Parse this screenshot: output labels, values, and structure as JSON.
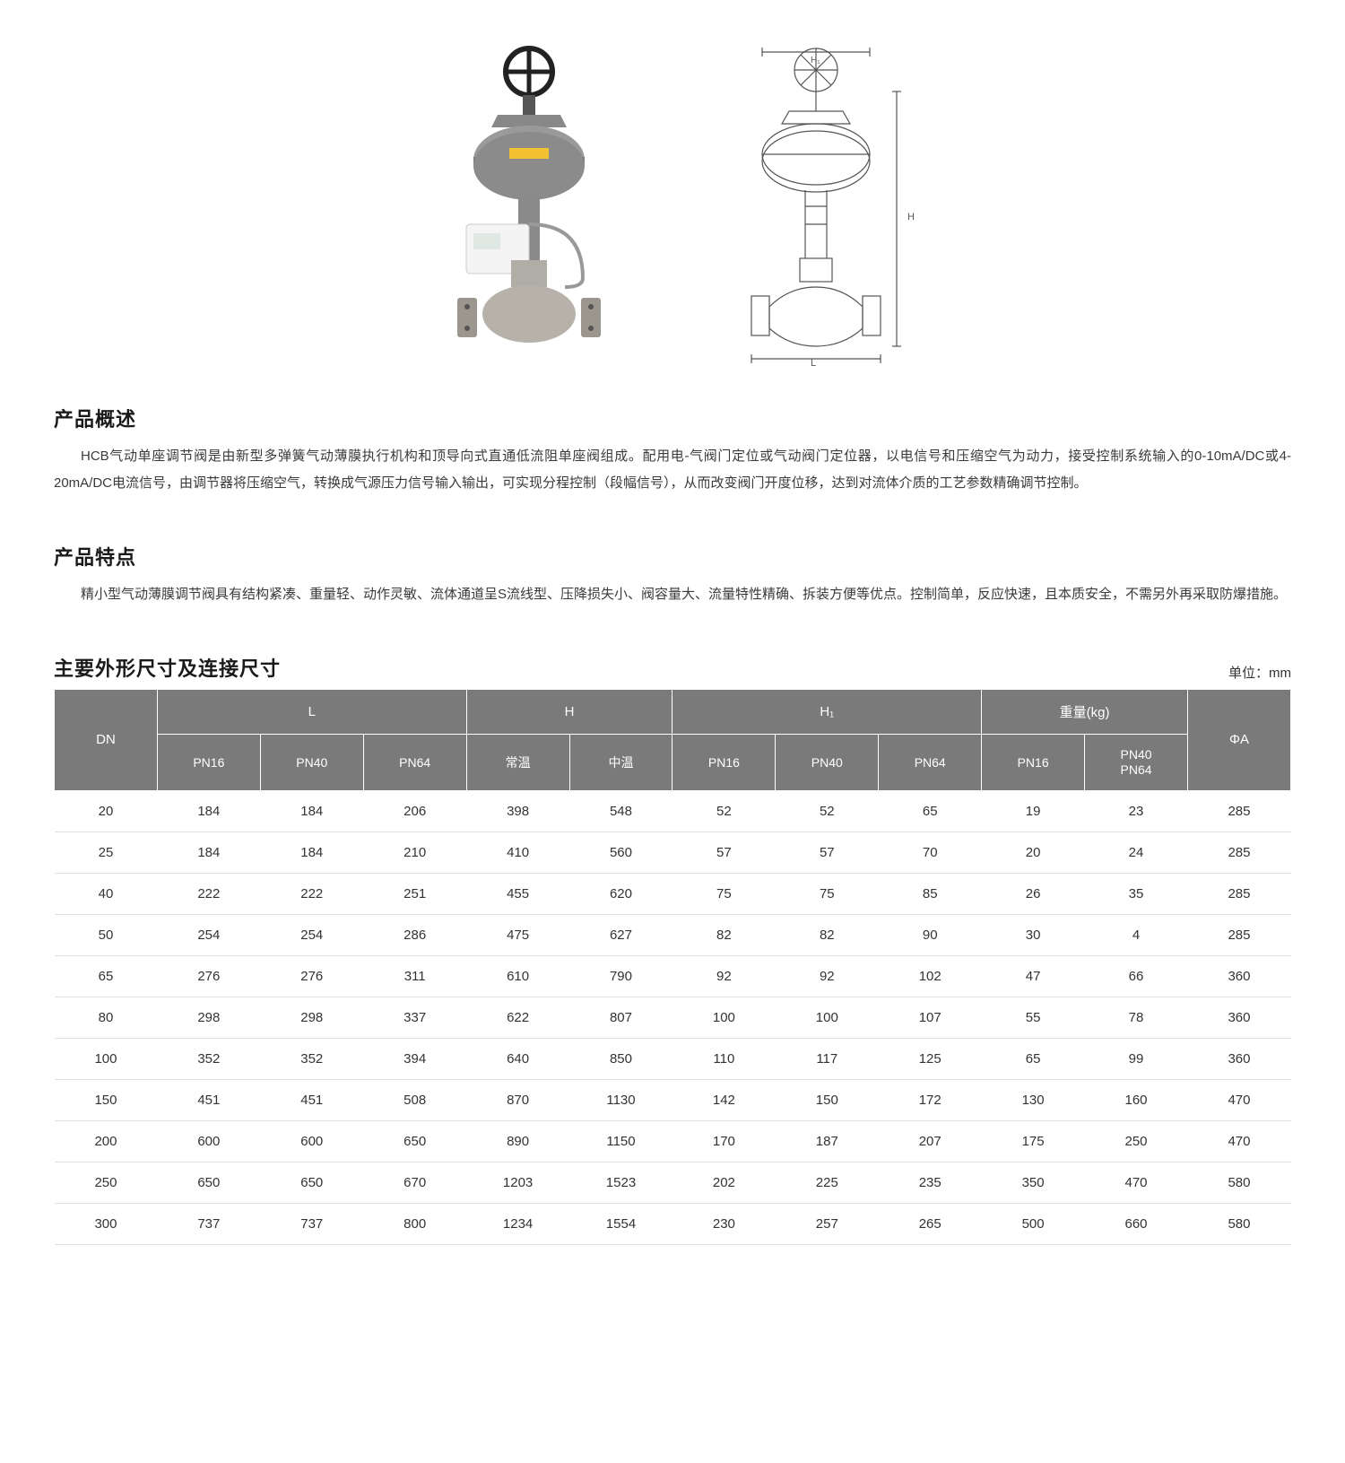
{
  "images": {
    "photo_alt": "valve-product-photo",
    "diagram_alt": "valve-technical-drawing",
    "diagram_label_top": "H₁",
    "diagram_label_side": "H",
    "diagram_label_bottom": "L"
  },
  "overview": {
    "heading": "产品概述",
    "body": "HCB气动单座调节阀是由新型多弹簧气动薄膜执行机构和顶导向式直通低流阻单座阀组成。配用电-气阀门定位或气动阀门定位器，以电信号和压缩空气为动力，接受控制系统输入的0-10mA/DC或4-20mA/DC电流信号，由调节器将压缩空气，转换成气源压力信号输入输出，可实现分程控制（段幅信号），从而改变阀门开度位移，达到对流体介质的工艺参数精确调节控制。"
  },
  "features": {
    "heading": "产品特点",
    "body": "精小型气动薄膜调节阀具有结构紧凑、重量轻、动作灵敏、流体通道呈S流线型、压降损失小、阀容量大、流量特性精确、拆装方便等优点。控制简单，反应快速，且本质安全，不需另外再采取防爆措施。"
  },
  "dimensions": {
    "heading": "主要外形尺寸及连接尺寸",
    "unit": "单位：mm",
    "header": {
      "dn": "DN",
      "l": "L",
      "h": "H",
      "h1": "H₁",
      "weight": "重量(kg)",
      "phi_a": "ΦA",
      "pn16": "PN16",
      "pn40": "PN40",
      "pn64": "PN64",
      "normal_temp": "常温",
      "mid_temp": "中温",
      "pn40_pn64_l1": "PN40",
      "pn40_pn64_l2": "PN64"
    },
    "rows": [
      {
        "dn": "20",
        "l_pn16": "184",
        "l_pn40": "184",
        "l_pn64": "206",
        "h_normal": "398",
        "h_mid": "548",
        "h1_pn16": "52",
        "h1_pn40": "52",
        "h1_pn64": "65",
        "w_pn16": "19",
        "w_pn40_64": "23",
        "phi_a": "285"
      },
      {
        "dn": "25",
        "l_pn16": "184",
        "l_pn40": "184",
        "l_pn64": "210",
        "h_normal": "410",
        "h_mid": "560",
        "h1_pn16": "57",
        "h1_pn40": "57",
        "h1_pn64": "70",
        "w_pn16": "20",
        "w_pn40_64": "24",
        "phi_a": "285"
      },
      {
        "dn": "40",
        "l_pn16": "222",
        "l_pn40": "222",
        "l_pn64": "251",
        "h_normal": "455",
        "h_mid": "620",
        "h1_pn16": "75",
        "h1_pn40": "75",
        "h1_pn64": "85",
        "w_pn16": "26",
        "w_pn40_64": "35",
        "phi_a": "285"
      },
      {
        "dn": "50",
        "l_pn16": "254",
        "l_pn40": "254",
        "l_pn64": "286",
        "h_normal": "475",
        "h_mid": "627",
        "h1_pn16": "82",
        "h1_pn40": "82",
        "h1_pn64": "90",
        "w_pn16": "30",
        "w_pn40_64": "4",
        "phi_a": "285"
      },
      {
        "dn": "65",
        "l_pn16": "276",
        "l_pn40": "276",
        "l_pn64": "311",
        "h_normal": "610",
        "h_mid": "790",
        "h1_pn16": "92",
        "h1_pn40": "92",
        "h1_pn64": "102",
        "w_pn16": "47",
        "w_pn40_64": "66",
        "phi_a": "360"
      },
      {
        "dn": "80",
        "l_pn16": "298",
        "l_pn40": "298",
        "l_pn64": "337",
        "h_normal": "622",
        "h_mid": "807",
        "h1_pn16": "100",
        "h1_pn40": "100",
        "h1_pn64": "107",
        "w_pn16": "55",
        "w_pn40_64": "78",
        "phi_a": "360"
      },
      {
        "dn": "100",
        "l_pn16": "352",
        "l_pn40": "352",
        "l_pn64": "394",
        "h_normal": "640",
        "h_mid": "850",
        "h1_pn16": "110",
        "h1_pn40": "117",
        "h1_pn64": "125",
        "w_pn16": "65",
        "w_pn40_64": "99",
        "phi_a": "360"
      },
      {
        "dn": "150",
        "l_pn16": "451",
        "l_pn40": "451",
        "l_pn64": "508",
        "h_normal": "870",
        "h_mid": "1130",
        "h1_pn16": "142",
        "h1_pn40": "150",
        "h1_pn64": "172",
        "w_pn16": "130",
        "w_pn40_64": "160",
        "phi_a": "470"
      },
      {
        "dn": "200",
        "l_pn16": "600",
        "l_pn40": "600",
        "l_pn64": "650",
        "h_normal": "890",
        "h_mid": "1150",
        "h1_pn16": "170",
        "h1_pn40": "187",
        "h1_pn64": "207",
        "w_pn16": "175",
        "w_pn40_64": "250",
        "phi_a": "470"
      },
      {
        "dn": "250",
        "l_pn16": "650",
        "l_pn40": "650",
        "l_pn64": "670",
        "h_normal": "1203",
        "h_mid": "1523",
        "h1_pn16": "202",
        "h1_pn40": "225",
        "h1_pn64": "235",
        "w_pn16": "350",
        "w_pn40_64": "470",
        "phi_a": "580"
      },
      {
        "dn": "300",
        "l_pn16": "737",
        "l_pn40": "737",
        "l_pn64": "800",
        "h_normal": "1234",
        "h_mid": "1554",
        "h1_pn16": "230",
        "h1_pn40": "257",
        "h1_pn64": "265",
        "w_pn16": "500",
        "w_pn40_64": "660",
        "phi_a": "580"
      }
    ],
    "colors": {
      "header_bg": "#7a7a7a",
      "header_fg": "#ffffff",
      "row_border": "#e0e0e0",
      "cell_fg": "#333333"
    }
  }
}
